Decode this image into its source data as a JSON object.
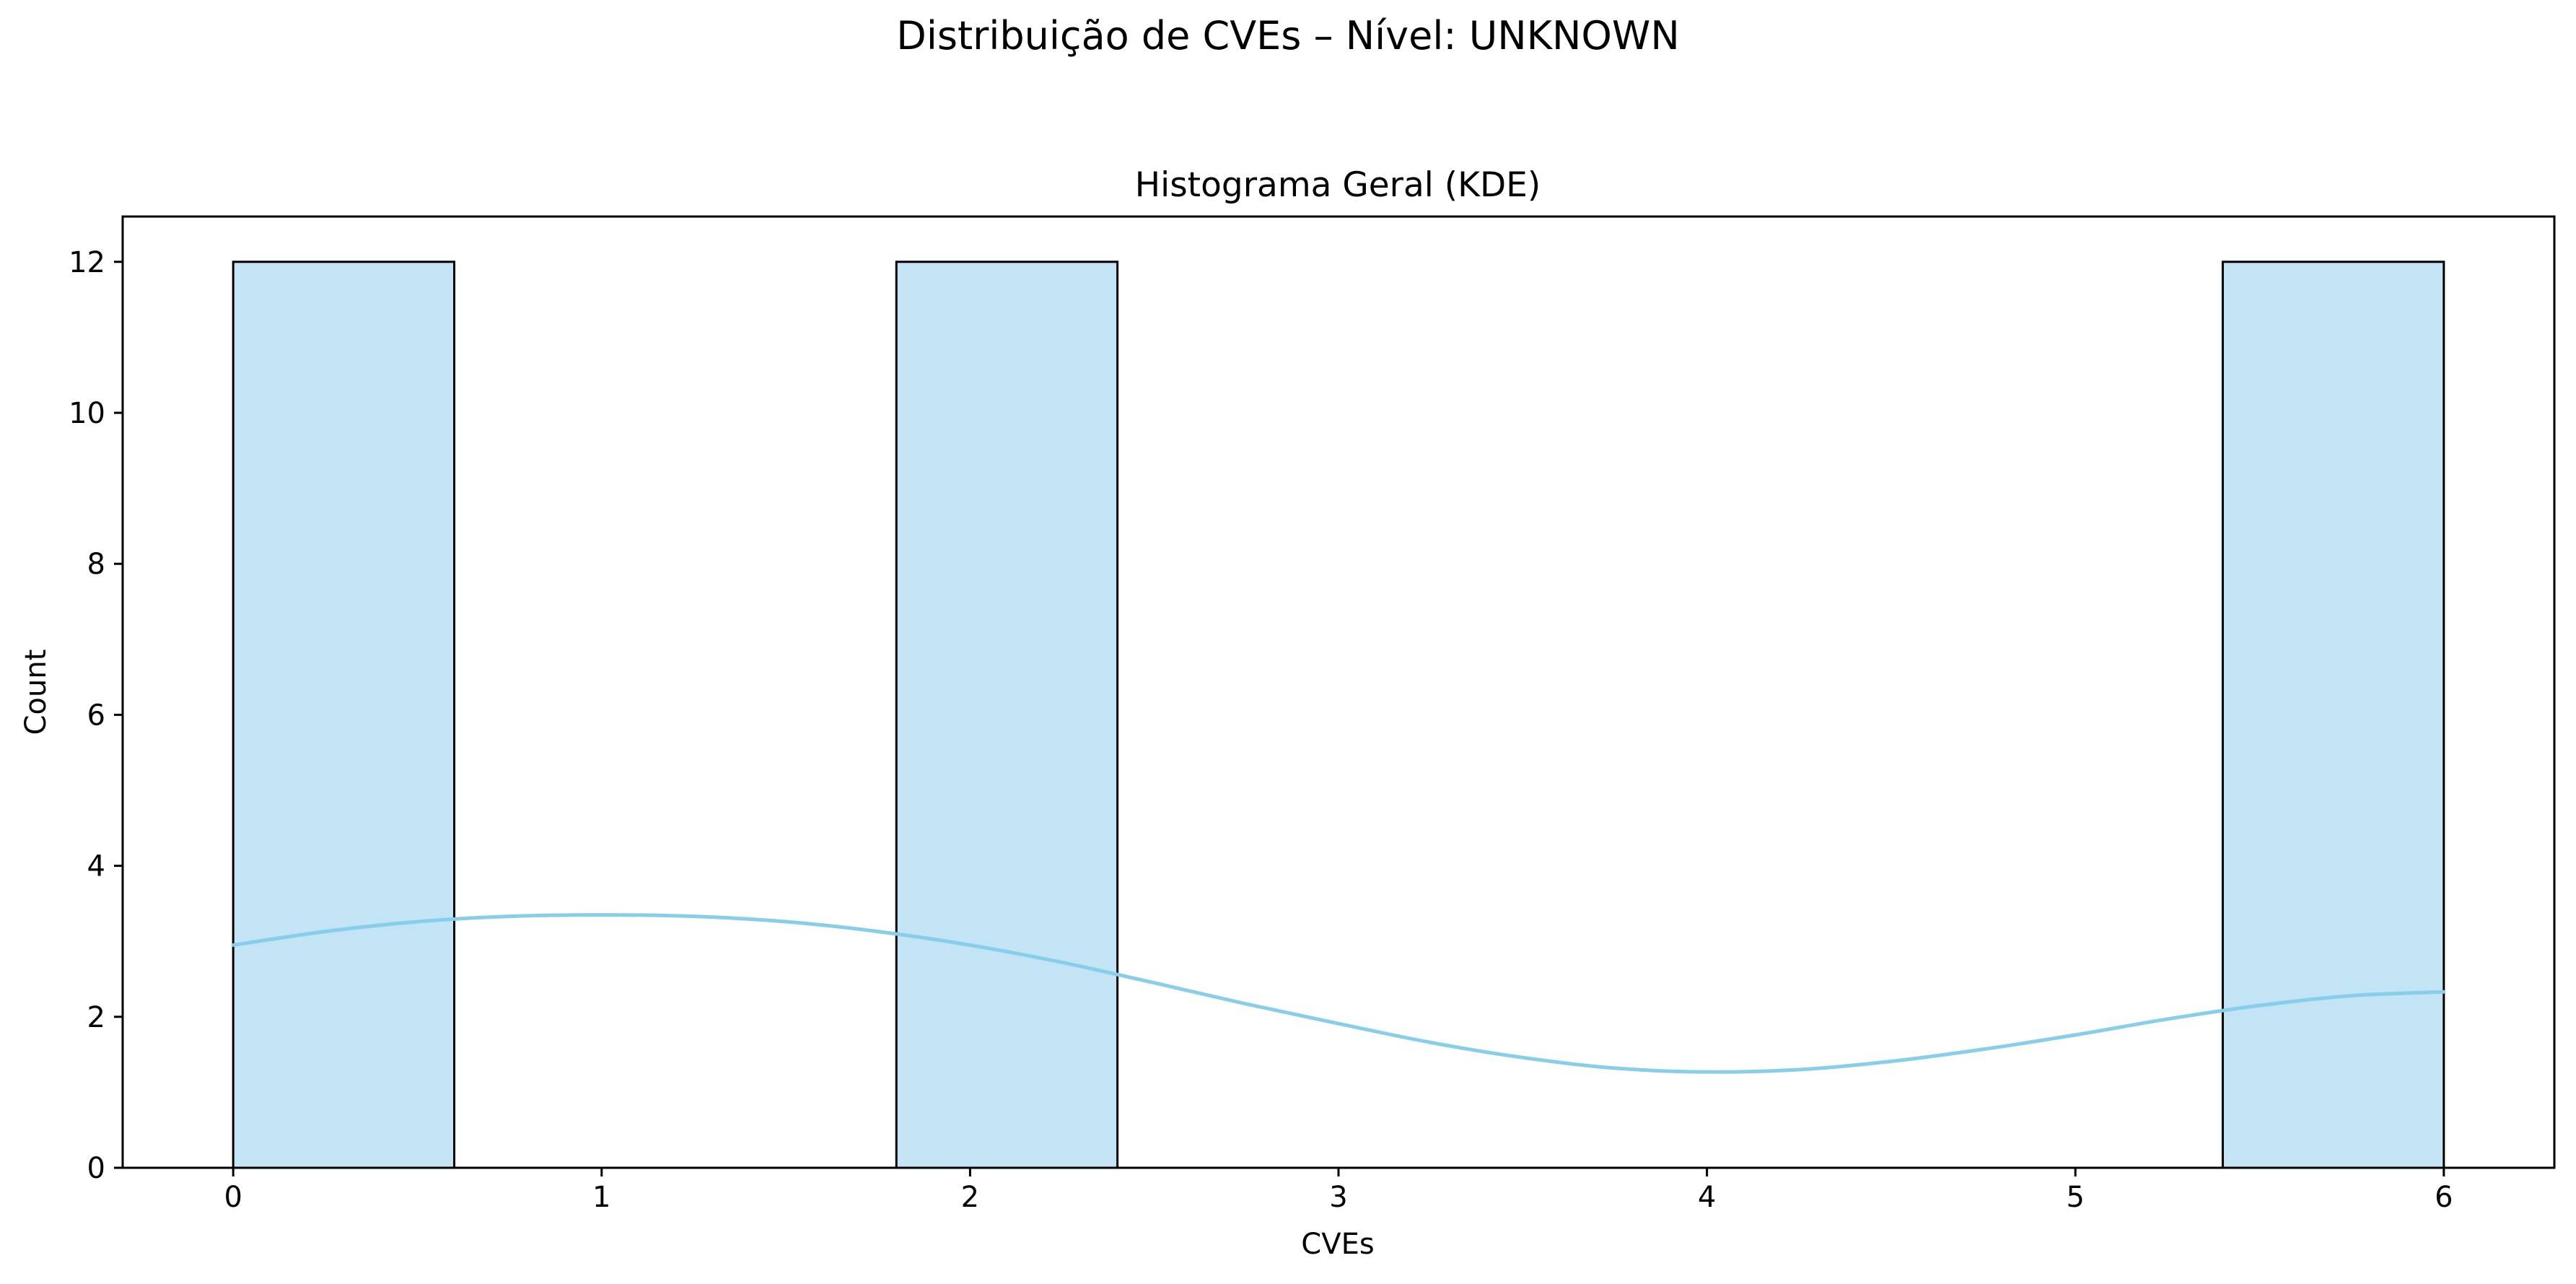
{
  "figure_title": "Distribuição de CVEs – Nível: UNKNOWN",
  "chart_data": {
    "type": "bar",
    "title": "Histograma Geral (KDE)",
    "xlabel": "CVEs",
    "ylabel": "Count",
    "xlim": [
      -0.3,
      6.3
    ],
    "ylim": [
      0,
      12.6
    ],
    "xticks": [
      0,
      1,
      2,
      3,
      4,
      5,
      6
    ],
    "yticks": [
      0,
      2,
      4,
      6,
      8,
      10,
      12
    ],
    "grid": false,
    "legend": false,
    "bins": [
      {
        "start": 0.0,
        "end": 0.6,
        "count": 12
      },
      {
        "start": 0.6,
        "end": 1.2,
        "count": 0
      },
      {
        "start": 1.2,
        "end": 1.8,
        "count": 0
      },
      {
        "start": 1.8,
        "end": 2.4,
        "count": 12
      },
      {
        "start": 2.4,
        "end": 3.0,
        "count": 0
      },
      {
        "start": 3.0,
        "end": 3.6,
        "count": 0
      },
      {
        "start": 3.6,
        "end": 4.2,
        "count": 0
      },
      {
        "start": 4.2,
        "end": 4.8,
        "count": 0
      },
      {
        "start": 4.8,
        "end": 5.4,
        "count": 0
      },
      {
        "start": 5.4,
        "end": 6.0,
        "count": 12
      }
    ],
    "kde": {
      "x": [
        0,
        0.25,
        0.5,
        0.75,
        1.0,
        1.25,
        1.5,
        1.75,
        2.0,
        2.25,
        2.5,
        2.75,
        3.0,
        3.25,
        3.5,
        3.75,
        4.0,
        4.25,
        4.5,
        4.75,
        5.0,
        5.25,
        5.5,
        5.75,
        6.0
      ],
      "y": [
        2.95,
        3.13,
        3.26,
        3.33,
        3.35,
        3.33,
        3.26,
        3.13,
        2.95,
        2.72,
        2.45,
        2.17,
        1.91,
        1.66,
        1.46,
        1.32,
        1.27,
        1.3,
        1.41,
        1.57,
        1.76,
        1.97,
        2.15,
        2.28,
        2.33
      ]
    },
    "colors": {
      "bar_fill": "#c2e4f4",
      "bar_edge": "#000000",
      "kde_line": "#87ceeb"
    }
  }
}
